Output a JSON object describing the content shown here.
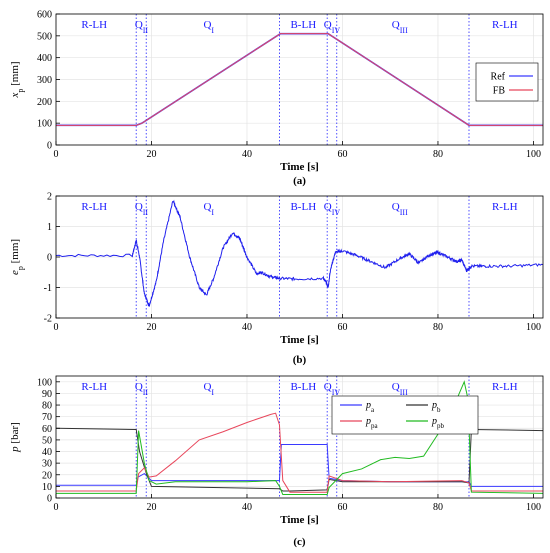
{
  "chart_data": [
    {
      "type": "line",
      "panel_label": "(a)",
      "xlabel": "Time [s]",
      "ylabel_main": "x",
      "ylabel_sub": "p",
      "ylabel_unit": " [mm]",
      "xlim": [
        0,
        102
      ],
      "ylim": [
        0,
        600
      ],
      "xticks": [
        0,
        20,
        40,
        60,
        80,
        100
      ],
      "yticks": [
        0,
        100,
        200,
        300,
        400,
        500,
        600
      ],
      "grid": true,
      "legend_position": "right",
      "phase_lines": [
        16.8,
        18.9,
        46.8,
        56.8,
        58.8,
        86.5
      ],
      "phases": [
        {
          "main": "R-LH",
          "sub": "",
          "x": 8
        },
        {
          "main": "Q",
          "sub": "II",
          "x": 17.9
        },
        {
          "main": "Q",
          "sub": "I",
          "x": 32
        },
        {
          "main": "B-LH",
          "sub": "",
          "x": 51.8
        },
        {
          "main": "Q",
          "sub": "IV",
          "x": 57.8
        },
        {
          "main": "Q",
          "sub": "III",
          "x": 72
        },
        {
          "main": "R-LH",
          "sub": "",
          "x": 94
        }
      ],
      "series": [
        {
          "name": "Ref",
          "color": "#3a3aff",
          "x": [
            0,
            16.8,
            18,
            47,
            57,
            86.5,
            102
          ],
          "y": [
            90,
            90,
            100,
            510,
            510,
            90,
            90
          ]
        },
        {
          "name": "FB",
          "color": "#e8475c",
          "x": [
            0,
            16.8,
            18,
            47,
            57,
            86.5,
            102
          ],
          "y": [
            90,
            90,
            100,
            510,
            510,
            90,
            90
          ]
        }
      ]
    },
    {
      "type": "line",
      "panel_label": "(b)",
      "xlabel": "Time [s]",
      "ylabel_main": "e",
      "ylabel_sub": "p",
      "ylabel_unit": " [mm]",
      "xlim": [
        0,
        102
      ],
      "ylim": [
        -2,
        2
      ],
      "xticks": [
        0,
        20,
        40,
        60,
        80,
        100
      ],
      "yticks": [
        -2,
        -1,
        0,
        1,
        2
      ],
      "grid": true,
      "phase_lines": [
        16.8,
        18.9,
        46.8,
        56.8,
        58.8,
        86.5
      ],
      "phases": [
        {
          "main": "R-LH",
          "sub": "",
          "x": 8
        },
        {
          "main": "Q",
          "sub": "II",
          "x": 17.9
        },
        {
          "main": "Q",
          "sub": "I",
          "x": 32
        },
        {
          "main": "B-LH",
          "sub": "",
          "x": 51.8
        },
        {
          "main": "Q",
          "sub": "IV",
          "x": 57.8
        },
        {
          "main": "Q",
          "sub": "III",
          "x": 72
        },
        {
          "main": "R-LH",
          "sub": "",
          "x": 94
        }
      ],
      "series": [
        {
          "color": "#2020ee",
          "x": [
            0,
            16,
            16.8,
            17.5,
            18.5,
            19.5,
            21,
            22.5,
            24.5,
            26,
            28,
            30,
            31.5,
            33,
            35,
            37,
            38.5,
            40,
            42,
            43,
            45,
            46.8,
            50,
            56,
            56.5,
            57,
            57.5,
            58.5,
            60,
            63,
            66,
            69,
            72,
            74,
            76,
            78,
            80,
            82,
            84,
            85,
            86,
            87,
            90,
            95,
            102
          ],
          "y": [
            0.05,
            0.05,
            0.55,
            0.0,
            -1.2,
            -1.6,
            -0.8,
            0.5,
            1.85,
            1.3,
            0.0,
            -1.0,
            -1.25,
            -0.7,
            0.3,
            0.8,
            0.6,
            0.0,
            -0.55,
            -0.5,
            -0.65,
            -0.7,
            -0.72,
            -0.7,
            -0.8,
            -1.0,
            -0.4,
            0.15,
            0.2,
            0.05,
            -0.15,
            -0.35,
            -0.05,
            0.1,
            -0.2,
            0.05,
            0.15,
            0.0,
            -0.15,
            -0.1,
            -0.45,
            -0.3,
            -0.3,
            -0.3,
            -0.25
          ]
        }
      ]
    },
    {
      "type": "line",
      "panel_label": "(c)",
      "xlabel": "Time [s]",
      "ylabel_main": "p",
      "ylabel_sub": "",
      "ylabel_unit": " [bar]",
      "xlim": [
        0,
        102
      ],
      "ylim": [
        0,
        105
      ],
      "xticks": [
        0,
        20,
        40,
        60,
        80,
        100
      ],
      "yticks": [
        0,
        10,
        20,
        30,
        40,
        50,
        60,
        70,
        80,
        90,
        100
      ],
      "grid": true,
      "legend_position": "right",
      "phase_lines": [
        16.8,
        18.9,
        46.8,
        56.8,
        58.8,
        86.5
      ],
      "phases": [
        {
          "main": "R-LH",
          "sub": "",
          "x": 8
        },
        {
          "main": "Q",
          "sub": "II",
          "x": 17.9
        },
        {
          "main": "Q",
          "sub": "I",
          "x": 32
        },
        {
          "main": "B-LH",
          "sub": "",
          "x": 51.8
        },
        {
          "main": "Q",
          "sub": "IV",
          "x": 57.8
        },
        {
          "main": "Q",
          "sub": "III",
          "x": 72
        },
        {
          "main": "R-LH",
          "sub": "",
          "x": 94
        }
      ],
      "series": [
        {
          "name_main": "p",
          "name_sub": "a",
          "color": "#3a3aff",
          "x": [
            0,
            16.8,
            17.2,
            18.5,
            20,
            30,
            45,
            46.8,
            47.2,
            56.8,
            57.2,
            60,
            70,
            85,
            86.5,
            87,
            102
          ],
          "y": [
            11,
            11,
            18,
            21,
            15,
            15,
            15,
            15,
            46,
            46,
            17,
            15,
            14,
            14,
            14,
            10,
            10
          ]
        },
        {
          "name_main": "p",
          "name_sub": "b",
          "color": "#333333",
          "x": [
            0,
            16.8,
            17.5,
            19,
            20,
            46.8,
            47.5,
            49,
            56.8,
            57.2,
            60,
            70,
            85,
            86.5,
            87,
            102
          ],
          "y": [
            60,
            59,
            40,
            20,
            10,
            8,
            6,
            6,
            7,
            16,
            14,
            14,
            14,
            13,
            59,
            58
          ]
        },
        {
          "name_main": "p",
          "name_sub": "pa",
          "color": "#e8475c",
          "x": [
            0,
            16.8,
            17.3,
            18.5,
            19.5,
            21,
            25,
            30,
            35,
            40,
            45,
            46,
            46.8,
            47.5,
            49,
            56.8,
            57.2,
            60,
            70,
            85,
            86.5,
            87,
            102
          ],
          "y": [
            6,
            6,
            21,
            26,
            18,
            19,
            32,
            50,
            57,
            65,
            72,
            73,
            63,
            15,
            5,
            5,
            19,
            15,
            14,
            15,
            13,
            6,
            6
          ]
        },
        {
          "name_main": "p",
          "name_sub": "pb",
          "color": "#22bb22",
          "x": [
            0,
            16.8,
            17.3,
            18.5,
            19.5,
            21,
            25,
            30,
            40,
            46,
            46.8,
            47.5,
            49,
            56.8,
            57.2,
            60,
            64,
            68,
            71,
            74,
            77,
            80,
            83,
            85.5,
            86.3,
            87,
            102
          ],
          "y": [
            4,
            4,
            58,
            30,
            15,
            12,
            14,
            14,
            14,
            15,
            10,
            3,
            3,
            3,
            9,
            21,
            25,
            33,
            35,
            34,
            36,
            55,
            76,
            100,
            85,
            5,
            4
          ]
        }
      ]
    }
  ]
}
